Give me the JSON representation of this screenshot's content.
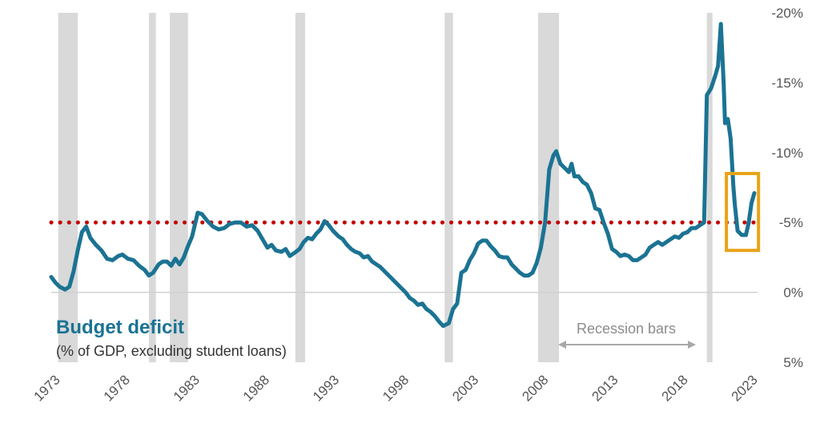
{
  "chart_data": {
    "type": "line",
    "title": "Budget deficit",
    "subtitle": "(% of GDP, excluding student loans)",
    "x_tick_labels": [
      "1973",
      "1978",
      "1983",
      "1988",
      "1993",
      "1998",
      "2003",
      "2008",
      "2013",
      "2018",
      "2023"
    ],
    "y_tick_labels": [
      "-20%",
      "-15%",
      "-10%",
      "-5%",
      "0%",
      "5%"
    ],
    "y_axis_side": "right",
    "y_axis_inverted": true,
    "xlim": [
      1973,
      2023
    ],
    "ylim": [
      5,
      -20
    ],
    "reference_line": {
      "value": -5,
      "color": "#c00000",
      "style": "dotted"
    },
    "recession_bars": [
      [
        1973.5,
        1974.9
      ],
      [
        1980.0,
        1980.5
      ],
      [
        1981.5,
        1982.8
      ],
      [
        1990.5,
        1991.2
      ],
      [
        2001.2,
        2001.8
      ],
      [
        2007.9,
        2009.4
      ],
      [
        2020.0,
        2020.4
      ]
    ],
    "recession_label": "Recession bars",
    "highlight_box": {
      "x": [
        2021.4,
        2023.7
      ],
      "y": [
        -8.5,
        -3.0
      ],
      "color": "#e8a317"
    },
    "series": [
      {
        "color": "#1b7393",
        "points": [
          [
            1973.0,
            -1.1
          ],
          [
            1973.3,
            -0.7
          ],
          [
            1973.6,
            -0.4
          ],
          [
            1974.0,
            -0.2
          ],
          [
            1974.3,
            -0.4
          ],
          [
            1974.6,
            -1.5
          ],
          [
            1974.9,
            -3.0
          ],
          [
            1975.2,
            -4.3
          ],
          [
            1975.5,
            -4.7
          ],
          [
            1975.8,
            -3.9
          ],
          [
            1976.2,
            -3.4
          ],
          [
            1976.6,
            -3.0
          ],
          [
            1977.0,
            -2.4
          ],
          [
            1977.4,
            -2.3
          ],
          [
            1977.8,
            -2.6
          ],
          [
            1978.1,
            -2.7
          ],
          [
            1978.5,
            -2.4
          ],
          [
            1978.9,
            -2.3
          ],
          [
            1979.3,
            -1.9
          ],
          [
            1979.7,
            -1.6
          ],
          [
            1980.0,
            -1.2
          ],
          [
            1980.3,
            -1.4
          ],
          [
            1980.7,
            -2.0
          ],
          [
            1981.0,
            -2.2
          ],
          [
            1981.3,
            -2.2
          ],
          [
            1981.6,
            -1.9
          ],
          [
            1981.9,
            -2.4
          ],
          [
            1982.2,
            -2.0
          ],
          [
            1982.5,
            -2.5
          ],
          [
            1982.8,
            -3.3
          ],
          [
            1983.1,
            -4.0
          ],
          [
            1983.5,
            -5.7
          ],
          [
            1983.8,
            -5.6
          ],
          [
            1984.2,
            -5.1
          ],
          [
            1984.6,
            -4.7
          ],
          [
            1985.0,
            -4.5
          ],
          [
            1985.4,
            -4.6
          ],
          [
            1985.8,
            -4.9
          ],
          [
            1986.2,
            -5.0
          ],
          [
            1986.6,
            -5.0
          ],
          [
            1987.0,
            -4.7
          ],
          [
            1987.4,
            -4.8
          ],
          [
            1987.8,
            -4.4
          ],
          [
            1988.2,
            -3.7
          ],
          [
            1988.5,
            -3.2
          ],
          [
            1988.8,
            -3.4
          ],
          [
            1989.1,
            -3.0
          ],
          [
            1989.5,
            -2.9
          ],
          [
            1989.8,
            -3.1
          ],
          [
            1990.1,
            -2.6
          ],
          [
            1990.4,
            -2.8
          ],
          [
            1990.8,
            -3.1
          ],
          [
            1991.1,
            -3.6
          ],
          [
            1991.4,
            -3.9
          ],
          [
            1991.7,
            -3.8
          ],
          [
            1992.0,
            -4.2
          ],
          [
            1992.3,
            -4.5
          ],
          [
            1992.6,
            -5.1
          ],
          [
            1992.9,
            -4.8
          ],
          [
            1993.2,
            -4.4
          ],
          [
            1993.6,
            -4.0
          ],
          [
            1993.9,
            -3.8
          ],
          [
            1994.2,
            -3.4
          ],
          [
            1994.5,
            -3.1
          ],
          [
            1994.8,
            -2.9
          ],
          [
            1995.1,
            -2.8
          ],
          [
            1995.4,
            -2.5
          ],
          [
            1995.7,
            -2.6
          ],
          [
            1996.0,
            -2.2
          ],
          [
            1996.3,
            -2.0
          ],
          [
            1996.6,
            -1.8
          ],
          [
            1996.9,
            -1.5
          ],
          [
            1997.2,
            -1.2
          ],
          [
            1997.5,
            -0.9
          ],
          [
            1997.8,
            -0.6
          ],
          [
            1998.1,
            -0.3
          ],
          [
            1998.4,
            0.0
          ],
          [
            1998.7,
            0.4
          ],
          [
            1999.0,
            0.6
          ],
          [
            1999.3,
            0.9
          ],
          [
            1999.6,
            0.8
          ],
          [
            1999.9,
            1.2
          ],
          [
            2000.2,
            1.4
          ],
          [
            2000.5,
            1.7
          ],
          [
            2000.8,
            2.1
          ],
          [
            2001.1,
            2.4
          ],
          [
            2001.5,
            2.2
          ],
          [
            2001.8,
            1.2
          ],
          [
            2002.1,
            0.8
          ],
          [
            2002.4,
            -1.4
          ],
          [
            2002.7,
            -1.6
          ],
          [
            2003.0,
            -2.3
          ],
          [
            2003.3,
            -2.8
          ],
          [
            2003.6,
            -3.5
          ],
          [
            2003.9,
            -3.7
          ],
          [
            2004.2,
            -3.7
          ],
          [
            2004.5,
            -3.3
          ],
          [
            2004.8,
            -3.0
          ],
          [
            2005.1,
            -2.6
          ],
          [
            2005.4,
            -2.5
          ],
          [
            2005.7,
            -2.5
          ],
          [
            2006.0,
            -2.0
          ],
          [
            2006.3,
            -1.7
          ],
          [
            2006.6,
            -1.4
          ],
          [
            2006.9,
            -1.2
          ],
          [
            2007.2,
            -1.2
          ],
          [
            2007.5,
            -1.4
          ],
          [
            2007.8,
            -2.1
          ],
          [
            2008.1,
            -3.2
          ],
          [
            2008.4,
            -5.0
          ],
          [
            2008.7,
            -8.8
          ],
          [
            2009.0,
            -9.8
          ],
          [
            2009.2,
            -10.1
          ],
          [
            2009.5,
            -9.2
          ],
          [
            2009.8,
            -8.9
          ],
          [
            2010.1,
            -8.6
          ],
          [
            2010.3,
            -9.2
          ],
          [
            2010.5,
            -8.3
          ],
          [
            2010.8,
            -8.3
          ],
          [
            2011.1,
            -7.9
          ],
          [
            2011.4,
            -7.7
          ],
          [
            2011.7,
            -7.1
          ],
          [
            2012.0,
            -6.0
          ],
          [
            2012.3,
            -5.9
          ],
          [
            2012.6,
            -5.0
          ],
          [
            2012.9,
            -4.2
          ],
          [
            2013.2,
            -3.1
          ],
          [
            2013.5,
            -2.9
          ],
          [
            2013.8,
            -2.6
          ],
          [
            2014.1,
            -2.7
          ],
          [
            2014.4,
            -2.6
          ],
          [
            2014.7,
            -2.3
          ],
          [
            2015.0,
            -2.3
          ],
          [
            2015.3,
            -2.5
          ],
          [
            2015.6,
            -2.7
          ],
          [
            2015.9,
            -3.2
          ],
          [
            2016.2,
            -3.4
          ],
          [
            2016.5,
            -3.6
          ],
          [
            2016.8,
            -3.4
          ],
          [
            2017.1,
            -3.6
          ],
          [
            2017.4,
            -3.8
          ],
          [
            2017.7,
            -4.0
          ],
          [
            2018.0,
            -3.9
          ],
          [
            2018.3,
            -4.2
          ],
          [
            2018.6,
            -4.3
          ],
          [
            2018.9,
            -4.6
          ],
          [
            2019.2,
            -4.6
          ],
          [
            2019.5,
            -4.8
          ],
          [
            2019.8,
            -5.0
          ],
          [
            2020.0,
            -14.1
          ],
          [
            2020.3,
            -14.6
          ],
          [
            2020.6,
            -15.5
          ],
          [
            2020.8,
            -16.2
          ],
          [
            2021.0,
            -19.2
          ],
          [
            2021.2,
            -15.1
          ],
          [
            2021.3,
            -12.1
          ],
          [
            2021.5,
            -12.4
          ],
          [
            2021.7,
            -11.0
          ],
          [
            2021.9,
            -7.6
          ],
          [
            2022.0,
            -6.3
          ],
          [
            2022.2,
            -4.4
          ],
          [
            2022.5,
            -4.1
          ],
          [
            2022.8,
            -4.1
          ],
          [
            2023.0,
            -5.0
          ],
          [
            2023.2,
            -6.4
          ],
          [
            2023.4,
            -7.1
          ]
        ]
      }
    ]
  }
}
